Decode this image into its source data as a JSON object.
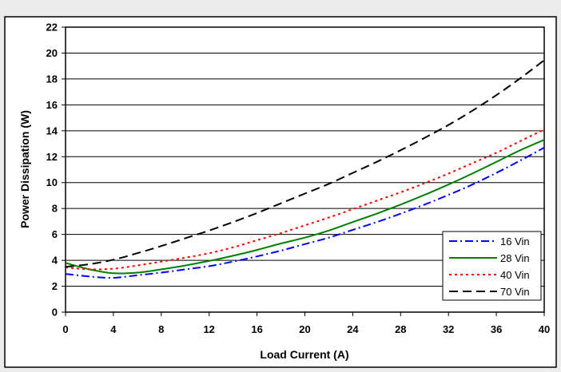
{
  "chart_data": {
    "type": "line",
    "title": "",
    "xlabel": "Load Current (A)",
    "ylabel": "Power Dissipation (W)",
    "xlim": [
      0,
      40
    ],
    "ylim": [
      0,
      22
    ],
    "x_ticks": [
      "0",
      "4",
      "8",
      "12",
      "16",
      "20",
      "24",
      "28",
      "32",
      "36",
      "40"
    ],
    "y_ticks": [
      "0",
      "2",
      "4",
      "6",
      "8",
      "10",
      "12",
      "14",
      "16",
      "18",
      "20",
      "22"
    ],
    "grid": "horizontal",
    "legend_position": "bottom-right",
    "x": [
      0,
      2,
      4,
      6,
      8,
      10,
      12,
      14,
      16,
      18,
      20,
      22,
      24,
      26,
      28,
      30,
      32,
      34,
      36,
      38,
      40
    ],
    "series": [
      {
        "name": "16 Vin",
        "color": "#0000ff",
        "dash": "dash-dot",
        "values": [
          2.95,
          2.75,
          2.65,
          2.85,
          3.05,
          3.3,
          3.55,
          3.9,
          4.3,
          4.75,
          5.25,
          5.75,
          6.35,
          6.95,
          7.6,
          8.3,
          9.05,
          9.85,
          10.75,
          11.7,
          12.7
        ]
      },
      {
        "name": "28 Vin",
        "color": "#008000",
        "dash": "solid",
        "values": [
          3.8,
          3.3,
          3.0,
          3.05,
          3.3,
          3.6,
          3.95,
          4.35,
          4.8,
          5.3,
          5.75,
          6.3,
          6.95,
          7.6,
          8.3,
          9.05,
          9.85,
          10.7,
          11.6,
          12.5,
          13.3
        ]
      },
      {
        "name": "40 Vin",
        "color": "#ff0000",
        "dash": "dotted",
        "values": [
          3.45,
          3.3,
          3.35,
          3.6,
          3.9,
          4.2,
          4.55,
          5.0,
          5.55,
          6.1,
          6.7,
          7.3,
          7.95,
          8.6,
          9.25,
          9.95,
          10.7,
          11.5,
          12.3,
          13.2,
          14.1
        ]
      },
      {
        "name": "70 Vin",
        "color": "#000000",
        "dash": "dashed",
        "values": [
          3.5,
          3.7,
          4.05,
          4.55,
          5.1,
          5.7,
          6.3,
          6.95,
          7.65,
          8.4,
          9.15,
          9.9,
          10.75,
          11.6,
          12.5,
          13.45,
          14.45,
          15.55,
          16.75,
          18.05,
          19.45
        ]
      }
    ]
  }
}
